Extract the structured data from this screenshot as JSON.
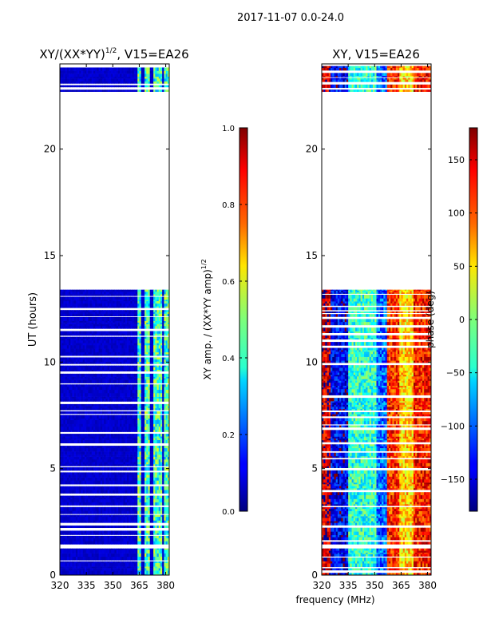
{
  "figure_title": "2017-11-07 0.0-24.0",
  "shared_xlabel": "frequency (MHz)",
  "colors": {
    "no_data": "#ffffff",
    "axes": "#000000"
  },
  "chart_data": [
    {
      "type": "heatmap",
      "title_main": "XY/(XX*YY)",
      "title_sup": "1/2",
      "title_rest": ", V15=EA26",
      "xlabel": "",
      "ylabel": "UT (hours)",
      "x_range": [
        320,
        382
      ],
      "y_range": [
        0,
        24
      ],
      "xticks": [
        320,
        335,
        350,
        365,
        380
      ],
      "yticks": [
        0,
        5,
        10,
        15,
        20
      ],
      "colorbar": {
        "label_main": "XY amp. / (XX*YY amp)",
        "label_sup": "1/2",
        "range": [
          0.0,
          1.0
        ],
        "ticks": [
          "0.0",
          "0.2",
          "0.4",
          "0.6",
          "0.8",
          "1.0"
        ],
        "tick_values": [
          0.0,
          0.2,
          0.4,
          0.6,
          0.8,
          1.0
        ]
      },
      "valid_hours": [
        [
          0,
          1.25
        ],
        [
          1.45,
          13.4
        ],
        [
          22.7,
          23.9
        ]
      ],
      "baseline": 0.05,
      "bright_channels_mhz": [
        [
          363.5,
          366
        ],
        [
          368,
          370.5
        ],
        [
          373,
          377.5
        ],
        [
          379,
          382
        ]
      ],
      "bright_level": 0.55
    },
    {
      "type": "heatmap",
      "title_main": "XY, V15=EA26",
      "title_sup": "",
      "title_rest": "",
      "xlabel": "frequency (MHz)",
      "ylabel": "",
      "x_range": [
        320,
        382
      ],
      "y_range": [
        0,
        24
      ],
      "xticks": [
        320,
        335,
        350,
        365,
        380
      ],
      "yticks": [
        0,
        5,
        10,
        15,
        20
      ],
      "colorbar": {
        "label_main": "phase (deg)",
        "label_sup": "",
        "range": [
          -180,
          180
        ],
        "ticks": [
          "−150",
          "−100",
          "−50",
          "0",
          "50",
          "100",
          "150"
        ],
        "tick_values": [
          -150,
          -100,
          -50,
          0,
          50,
          100,
          150
        ]
      },
      "valid_hours": [
        [
          0,
          1.25
        ],
        [
          1.45,
          13.4
        ],
        [
          22.7,
          23.9
        ]
      ],
      "phase_bands": [
        {
          "from_mhz": 320,
          "to_mhz": 325,
          "phase_deg": 150
        },
        {
          "from_mhz": 325,
          "to_mhz": 335,
          "phase_deg": -140
        },
        {
          "from_mhz": 335,
          "to_mhz": 351,
          "phase_deg": -30
        },
        {
          "from_mhz": 351,
          "to_mhz": 357,
          "phase_deg": -100
        },
        {
          "from_mhz": 357,
          "to_mhz": 364,
          "phase_deg": 120
        },
        {
          "from_mhz": 364,
          "to_mhz": 372,
          "phase_deg": 60
        },
        {
          "from_mhz": 372,
          "to_mhz": 382,
          "phase_deg": 130
        }
      ]
    }
  ]
}
